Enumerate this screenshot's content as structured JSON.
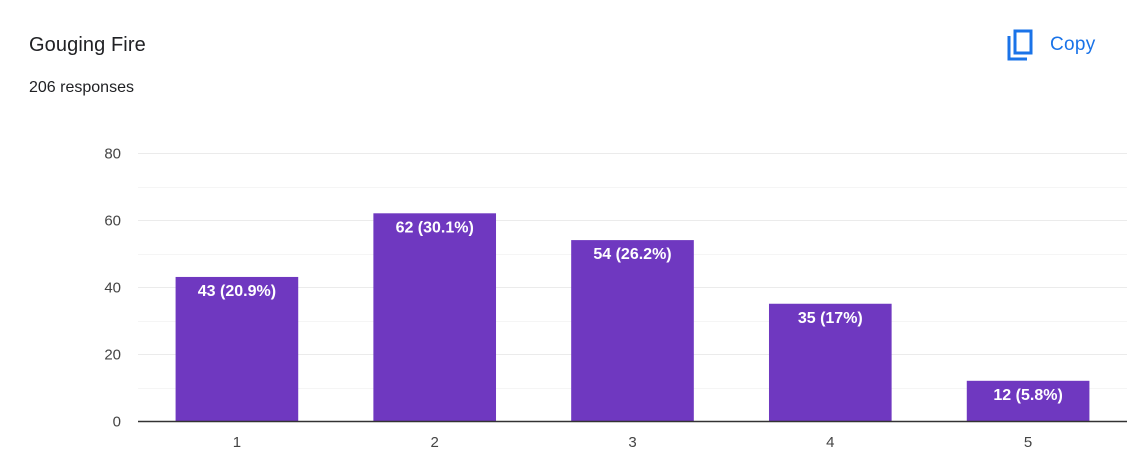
{
  "header": {
    "title": "Gouging Fire",
    "responses": "206 responses",
    "copy_label": "Copy"
  },
  "icons": {
    "copy": "copy-icon"
  },
  "colors": {
    "bar": "#6f38c0",
    "accent": "#1a73e8",
    "grid": "#ebebeb",
    "axis": "#333333",
    "label": "#ffffff"
  },
  "chart_data": {
    "type": "bar",
    "title": "",
    "xlabel": "",
    "ylabel": "",
    "categories": [
      "1",
      "2",
      "3",
      "4",
      "5"
    ],
    "values": [
      43,
      62,
      54,
      35,
      12
    ],
    "data_labels": [
      "43 (20.9%)",
      "62 (30.1%)",
      "54 (26.2%)",
      "35 (17%)",
      "12 (5.8%)"
    ],
    "ylim": [
      0,
      80
    ],
    "yticks": [
      0,
      20,
      40,
      60,
      80
    ],
    "grid": true
  }
}
